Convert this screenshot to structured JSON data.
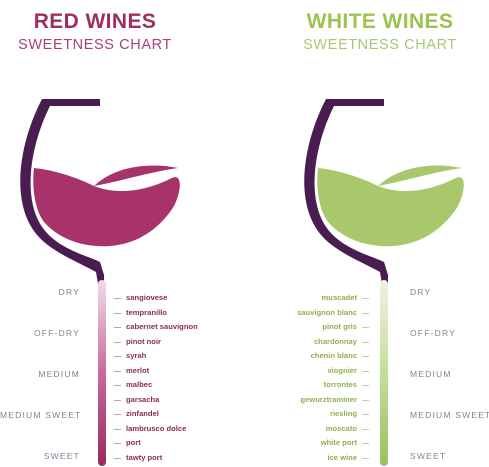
{
  "red": {
    "title": "RED WINES",
    "subtitle": "SWEETNESS CHART",
    "levels": [
      "DRY",
      "OFF-DRY",
      "MEDIUM",
      "MEDIUM SWEET",
      "SWEET"
    ],
    "grapes": [
      "sangiovese",
      "tempranillo",
      "cabernet sauvignon",
      "pinot noir",
      "syrah",
      "merlot",
      "malbec",
      "garsacha",
      "zinfandel",
      "lambrusco dolce",
      "port",
      "tawty port"
    ],
    "colors": {
      "wine": "#a7336a",
      "glass": "#4a1d50",
      "accent": "#9e2f5d"
    }
  },
  "white": {
    "title": "WHITE WINES",
    "subtitle": "SWEETNESS CHART",
    "levels": [
      "DRY",
      "OFF-DRY",
      "MEDIUM",
      "MEDIUM SWEET",
      "SWEET"
    ],
    "grapes": [
      "muscadet",
      "sauvignon blanc",
      "pinot gris",
      "chardonnay",
      "chenin blanc",
      "viognier",
      "torrontes",
      "gewurztraminer",
      "riesling",
      "moscato",
      "white port",
      "ice wine"
    ],
    "colors": {
      "wine": "#a9c86c",
      "glass": "#4a1d50",
      "accent": "#9cc34f"
    }
  }
}
